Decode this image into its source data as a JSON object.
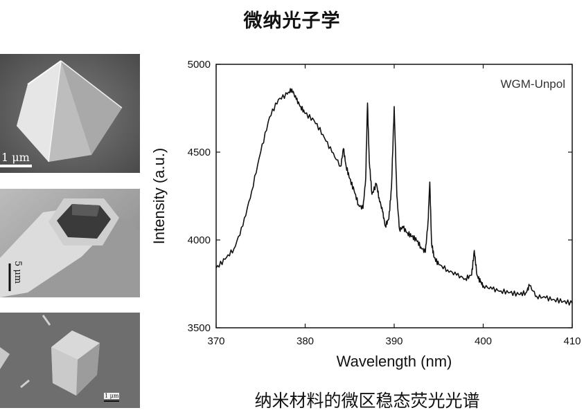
{
  "page": {
    "title": "微纳光子学",
    "caption": "纳米材料的微区稳态荧光光谱"
  },
  "images": [
    {
      "name": "octahedron-micrograph",
      "scale_bar": "1 μm"
    },
    {
      "name": "hexagonal-tube-micrograph",
      "scale_bar": "5 μm"
    },
    {
      "name": "cube-micrograph",
      "scale_bar": "1 μm"
    }
  ],
  "chart_data": {
    "type": "line",
    "title": "",
    "legend": "WGM-Unpol",
    "legend_position": "top-right",
    "xlabel": "Wavelength (nm)",
    "ylabel": "Intensity (a.u.)",
    "xlim": [
      370,
      410
    ],
    "ylim": [
      3500,
      5000
    ],
    "xticks": [
      370,
      380,
      390,
      400,
      410
    ],
    "yticks": [
      3500,
      4000,
      4500,
      5000
    ],
    "grid": false,
    "color": "#111111",
    "series": [
      {
        "x": [
          370,
          371,
          372,
          373,
          374,
          375,
          376,
          377,
          378,
          378.5,
          379,
          379.5,
          380,
          381,
          382,
          383,
          384,
          384.3,
          384.6,
          385,
          385.5,
          386,
          386.5,
          386.8,
          387,
          387.2,
          387.5,
          388,
          388.3,
          388.7,
          389,
          389.4,
          389.7,
          390,
          390.3,
          390.6,
          391,
          391.5,
          392,
          392.5,
          393,
          393.5,
          393.8,
          394,
          394.2,
          394.5,
          395,
          396,
          397,
          398,
          398.7,
          399,
          399.3,
          399.7,
          400,
          401,
          402,
          403,
          404,
          404.8,
          405.2,
          406,
          407,
          408,
          409,
          410
        ],
        "y": [
          3840,
          3890,
          3950,
          4080,
          4280,
          4500,
          4700,
          4800,
          4830,
          4860,
          4800,
          4760,
          4720,
          4680,
          4600,
          4500,
          4420,
          4520,
          4420,
          4350,
          4280,
          4200,
          4180,
          4350,
          4780,
          4450,
          4260,
          4320,
          4240,
          4160,
          4080,
          4120,
          4300,
          4760,
          4250,
          4060,
          4070,
          4040,
          4020,
          4000,
          3960,
          3930,
          4100,
          4330,
          3980,
          3900,
          3860,
          3830,
          3800,
          3780,
          3800,
          3940,
          3800,
          3760,
          3740,
          3720,
          3710,
          3700,
          3690,
          3700,
          3740,
          3680,
          3670,
          3660,
          3650,
          3640
        ]
      }
    ]
  }
}
